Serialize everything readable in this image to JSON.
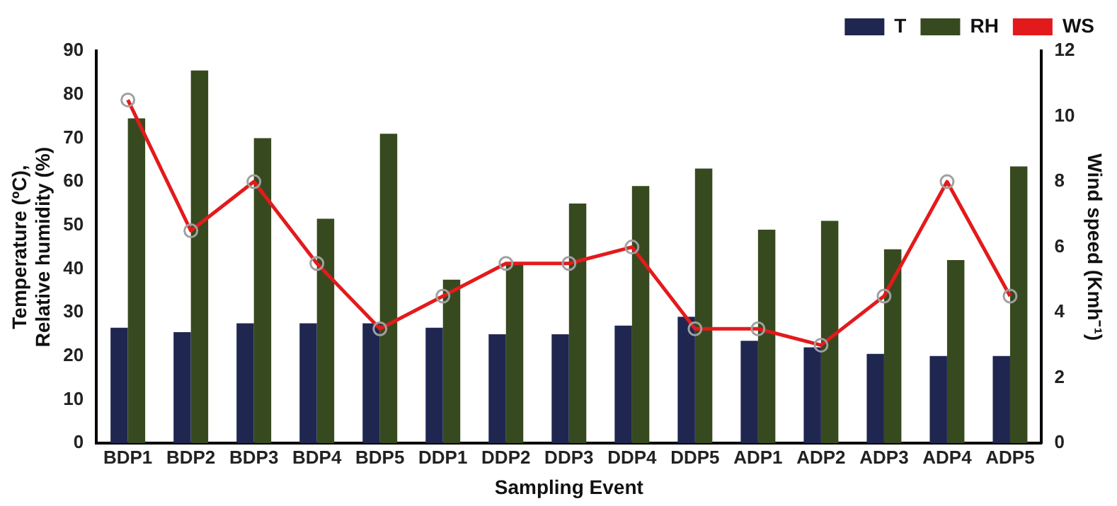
{
  "chart_data": {
    "type": "bar",
    "xlabel": "Sampling Event",
    "ylabel": "Temperature (ºC),\nRelative humidity (%)",
    "y2label": "Wind speed (Kmh⁻¹)",
    "categories": [
      "BDP1",
      "BDP2",
      "BDP3",
      "BDP4",
      "BDP5",
      "DDP1",
      "DDP2",
      "DDP3",
      "DDP4",
      "DDP5",
      "ADP1",
      "ADP2",
      "ADP3",
      "ADP4",
      "ADP5"
    ],
    "series": [
      {
        "name": "T",
        "color": "#1f2750",
        "values": [
          26.5,
          25.5,
          27.5,
          27.5,
          27.5,
          26.5,
          25,
          25,
          27,
          29,
          23.5,
          22,
          20.5,
          20,
          20
        ]
      },
      {
        "name": "RH",
        "color": "#374a1f",
        "values": [
          74.5,
          85.5,
          70,
          51.5,
          71,
          37.5,
          41,
          55,
          59,
          63,
          49,
          51,
          44.5,
          42,
          63.5
        ]
      },
      {
        "name": "WS",
        "type": "line",
        "axis": "y2",
        "color": "#e31a1c",
        "marker": "circle",
        "values": [
          10.5,
          6.5,
          8,
          5.5,
          3.5,
          4.5,
          5.5,
          5.5,
          6,
          3.5,
          3.5,
          3,
          4.5,
          8,
          4.5
        ]
      }
    ],
    "ylim": [
      0,
      90
    ],
    "yticks": [
      0,
      10,
      20,
      30,
      40,
      50,
      60,
      70,
      80,
      90
    ],
    "y2lim": [
      0,
      12
    ],
    "y2ticks": [
      0,
      2,
      4,
      6,
      8,
      10,
      12
    ],
    "grid": false,
    "legend": "top right"
  }
}
